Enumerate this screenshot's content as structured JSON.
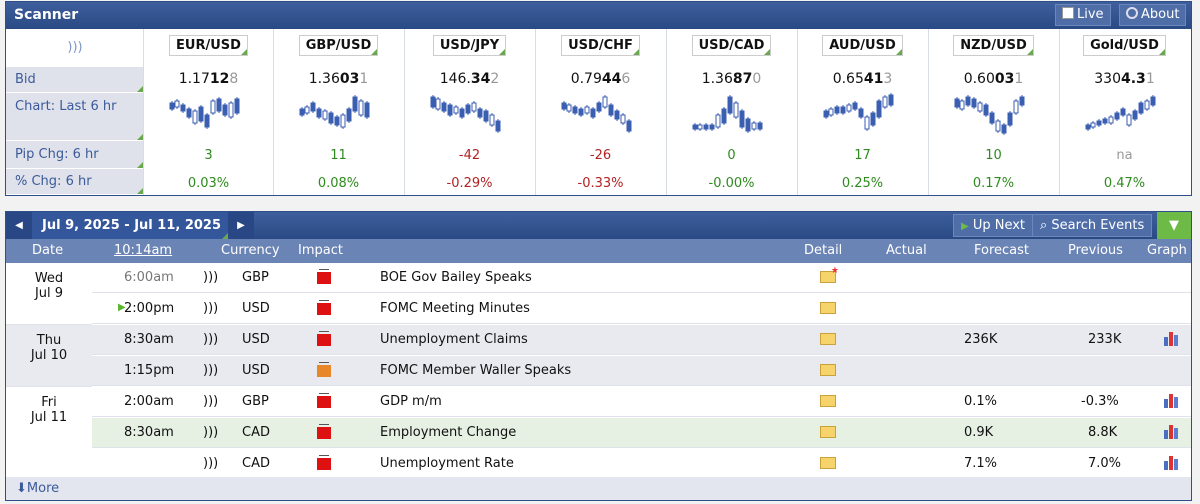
{
  "scanner": {
    "title": "Scanner",
    "live_label": "Live",
    "about_label": "About",
    "row_labels": {
      "bid": "Bid",
      "chart": "Chart: Last 6 hr",
      "pip": "Pip Chg: 6 hr",
      "pct": "% Chg: 6 hr"
    },
    "pairs": [
      {
        "name": "EUR/USD",
        "bid_a": "1.17",
        "bid_b": "12",
        "bid_c": "8",
        "pip": "3",
        "pct": "0.03%",
        "dir": "pos"
      },
      {
        "name": "GBP/USD",
        "bid_a": "1.36",
        "bid_b": "03",
        "bid_c": "1",
        "pip": "11",
        "pct": "0.08%",
        "dir": "pos"
      },
      {
        "name": "USD/JPY",
        "bid_a": "146.",
        "bid_b": "34",
        "bid_c": "2",
        "pip": "-42",
        "pct": "-0.29%",
        "dir": "neg"
      },
      {
        "name": "USD/CHF",
        "bid_a": "0.79",
        "bid_b": "44",
        "bid_c": "6",
        "pip": "-26",
        "pct": "-0.33%",
        "dir": "neg"
      },
      {
        "name": "USD/CAD",
        "bid_a": "1.36",
        "bid_b": "87",
        "bid_c": "0",
        "pip": "0",
        "pct": "-0.00%",
        "dir": "pos"
      },
      {
        "name": "AUD/USD",
        "bid_a": "0.65",
        "bid_b": "41",
        "bid_c": "3",
        "pip": "17",
        "pct": "0.25%",
        "dir": "pos"
      },
      {
        "name": "NZD/USD",
        "bid_a": "0.60",
        "bid_b": "03",
        "bid_c": "1",
        "pip": "10",
        "pct": "0.17%",
        "dir": "pos"
      },
      {
        "name": "Gold/USD",
        "bid_a": "330",
        "bid_b": "4.3",
        "bid_c": "1",
        "pip": "na",
        "pct": "0.47%",
        "dir": "pos"
      }
    ]
  },
  "calendar": {
    "range": "Jul 9, 2025 - Jul 11, 2025",
    "up_next": "Up Next",
    "search": "Search Events",
    "headers": {
      "date": "Date",
      "time": "10:14am",
      "currency": "Currency",
      "impact": "Impact",
      "detail": "Detail",
      "actual": "Actual",
      "forecast": "Forecast",
      "previous": "Previous",
      "graph": "Graph"
    },
    "days": [
      {
        "dow": "Wed",
        "date": "Jul 9"
      },
      {
        "dow": "Thu",
        "date": "Jul 10"
      },
      {
        "dow": "Fri",
        "date": "Jul 11"
      }
    ],
    "events": [
      {
        "time": "6:00am",
        "currency": "GBP",
        "title": "BOE Gov Bailey Speaks",
        "forecast": "",
        "previous": ""
      },
      {
        "time": "2:00pm",
        "currency": "USD",
        "title": "FOMC Meeting Minutes",
        "forecast": "",
        "previous": ""
      },
      {
        "time": "8:30am",
        "currency": "USD",
        "title": "Unemployment Claims",
        "forecast": "236K",
        "previous": "233K"
      },
      {
        "time": "1:15pm",
        "currency": "USD",
        "title": "FOMC Member Waller Speaks",
        "forecast": "",
        "previous": ""
      },
      {
        "time": "2:00am",
        "currency": "GBP",
        "title": "GDP m/m",
        "forecast": "0.1%",
        "previous": "-0.3%"
      },
      {
        "time": "8:30am",
        "currency": "CAD",
        "title": "Employment Change",
        "forecast": "0.9K",
        "previous": "8.8K"
      },
      {
        "time": "",
        "currency": "CAD",
        "title": "Unemployment Rate",
        "forecast": "7.1%",
        "previous": "7.0%"
      }
    ],
    "more": "More"
  }
}
